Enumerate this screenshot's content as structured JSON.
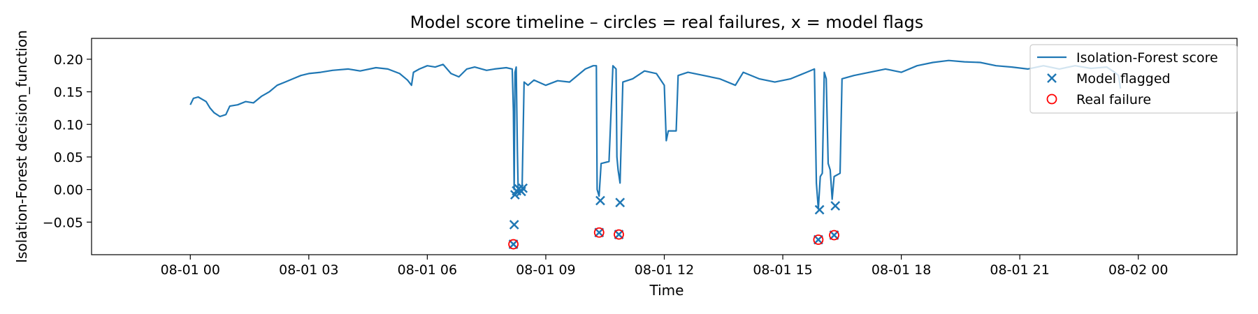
{
  "chart_data": {
    "type": "line",
    "title": "Model score timeline – circles = real failures, x = model flags",
    "xlabel": "Time",
    "ylabel": "Isolation-Forest decision_function",
    "x_range_hours": [
      -2.5,
      26.5
    ],
    "ylim": [
      -0.1,
      0.232
    ],
    "x_ticks": [
      {
        "value": 0,
        "label": "08-01 00"
      },
      {
        "value": 3,
        "label": "08-01 03"
      },
      {
        "value": 6,
        "label": "08-01 06"
      },
      {
        "value": 9,
        "label": "08-01 09"
      },
      {
        "value": 12,
        "label": "08-01 12"
      },
      {
        "value": 15,
        "label": "08-01 15"
      },
      {
        "value": 18,
        "label": "08-01 18"
      },
      {
        "value": 21,
        "label": "08-01 21"
      },
      {
        "value": 24,
        "label": "08-02 00"
      }
    ],
    "y_ticks": [
      {
        "value": 0.2,
        "label": "0.20"
      },
      {
        "value": 0.15,
        "label": "0.15"
      },
      {
        "value": 0.1,
        "label": "0.10"
      },
      {
        "value": 0.05,
        "label": "0.05"
      },
      {
        "value": 0.0,
        "label": "0.00"
      },
      {
        "value": -0.05,
        "label": "−0.05"
      }
    ],
    "grid": false,
    "legend_position": "top-right",
    "colors": {
      "score_line": "#1f77b4",
      "flag_marker": "#1f77b4",
      "failure_marker": "#ff0000"
    },
    "series": [
      {
        "name": "Isolation-Forest score",
        "kind": "line",
        "points": [
          [
            0.0,
            0.13
          ],
          [
            0.08,
            0.14
          ],
          [
            0.2,
            0.142
          ],
          [
            0.4,
            0.135
          ],
          [
            0.5,
            0.125
          ],
          [
            0.6,
            0.118
          ],
          [
            0.75,
            0.112
          ],
          [
            0.9,
            0.115
          ],
          [
            1.0,
            0.128
          ],
          [
            1.2,
            0.13
          ],
          [
            1.4,
            0.135
          ],
          [
            1.6,
            0.133
          ],
          [
            1.8,
            0.143
          ],
          [
            2.0,
            0.15
          ],
          [
            2.2,
            0.16
          ],
          [
            2.4,
            0.165
          ],
          [
            2.6,
            0.17
          ],
          [
            2.8,
            0.175
          ],
          [
            3.0,
            0.178
          ],
          [
            3.3,
            0.18
          ],
          [
            3.6,
            0.183
          ],
          [
            4.0,
            0.185
          ],
          [
            4.3,
            0.182
          ],
          [
            4.7,
            0.187
          ],
          [
            5.0,
            0.185
          ],
          [
            5.3,
            0.178
          ],
          [
            5.5,
            0.168
          ],
          [
            5.6,
            0.16
          ],
          [
            5.65,
            0.18
          ],
          [
            5.8,
            0.185
          ],
          [
            6.0,
            0.19
          ],
          [
            6.2,
            0.188
          ],
          [
            6.4,
            0.192
          ],
          [
            6.6,
            0.178
          ],
          [
            6.8,
            0.173
          ],
          [
            7.0,
            0.185
          ],
          [
            7.2,
            0.188
          ],
          [
            7.5,
            0.183
          ],
          [
            7.7,
            0.185
          ],
          [
            8.0,
            0.187
          ],
          [
            8.15,
            0.185
          ],
          [
            8.18,
            0.12
          ],
          [
            8.2,
            0.0
          ],
          [
            8.22,
            0.18
          ],
          [
            8.25,
            0.188
          ],
          [
            8.28,
            0.06
          ],
          [
            8.3,
            0.0
          ],
          [
            8.35,
            -0.005
          ],
          [
            8.4,
            0.0
          ],
          [
            8.45,
            0.165
          ],
          [
            8.55,
            0.16
          ],
          [
            8.7,
            0.168
          ],
          [
            9.0,
            0.16
          ],
          [
            9.3,
            0.167
          ],
          [
            9.6,
            0.165
          ],
          [
            10.0,
            0.185
          ],
          [
            10.2,
            0.19
          ],
          [
            10.28,
            0.19
          ],
          [
            10.3,
            0.0
          ],
          [
            10.35,
            -0.01
          ],
          [
            10.4,
            0.04
          ],
          [
            10.6,
            0.043
          ],
          [
            10.7,
            0.19
          ],
          [
            10.78,
            0.185
          ],
          [
            10.8,
            0.05
          ],
          [
            10.83,
            0.03
          ],
          [
            10.88,
            0.01
          ],
          [
            10.95,
            0.165
          ],
          [
            11.2,
            0.17
          ],
          [
            11.5,
            0.182
          ],
          [
            11.8,
            0.178
          ],
          [
            12.0,
            0.16
          ],
          [
            12.05,
            0.075
          ],
          [
            12.1,
            0.09
          ],
          [
            12.3,
            0.09
          ],
          [
            12.35,
            0.175
          ],
          [
            12.6,
            0.18
          ],
          [
            13.0,
            0.175
          ],
          [
            13.4,
            0.17
          ],
          [
            13.8,
            0.16
          ],
          [
            14.0,
            0.18
          ],
          [
            14.4,
            0.17
          ],
          [
            14.8,
            0.165
          ],
          [
            15.2,
            0.17
          ],
          [
            15.6,
            0.18
          ],
          [
            15.8,
            0.185
          ],
          [
            15.85,
            0.01
          ],
          [
            15.9,
            -0.03
          ],
          [
            15.95,
            0.02
          ],
          [
            16.0,
            0.025
          ],
          [
            16.05,
            0.18
          ],
          [
            16.1,
            0.17
          ],
          [
            16.15,
            0.04
          ],
          [
            16.2,
            0.03
          ],
          [
            16.25,
            -0.015
          ],
          [
            16.3,
            0.02
          ],
          [
            16.45,
            0.025
          ],
          [
            16.5,
            0.17
          ],
          [
            16.8,
            0.175
          ],
          [
            17.2,
            0.18
          ],
          [
            17.6,
            0.185
          ],
          [
            18.0,
            0.18
          ],
          [
            18.4,
            0.19
          ],
          [
            18.8,
            0.195
          ],
          [
            19.2,
            0.198
          ],
          [
            19.6,
            0.196
          ],
          [
            20.0,
            0.195
          ],
          [
            20.4,
            0.19
          ],
          [
            20.8,
            0.188
          ],
          [
            21.2,
            0.185
          ],
          [
            21.6,
            0.19
          ],
          [
            22.0,
            0.185
          ],
          [
            22.4,
            0.19
          ],
          [
            22.8,
            0.186
          ],
          [
            23.2,
            0.188
          ],
          [
            23.4,
            0.18
          ],
          [
            23.5,
            0.175
          ],
          [
            23.55,
            0.155
          ]
        ]
      },
      {
        "name": "Model flagged",
        "kind": "scatter",
        "marker": "x",
        "points": [
          [
            8.18,
            -0.084
          ],
          [
            8.2,
            -0.054
          ],
          [
            8.22,
            -0.008
          ],
          [
            8.26,
            -0.002
          ],
          [
            8.32,
            0.001
          ],
          [
            8.38,
            -0.003
          ],
          [
            8.42,
            0.002
          ],
          [
            10.35,
            -0.066
          ],
          [
            10.38,
            -0.017
          ],
          [
            10.85,
            -0.069
          ],
          [
            10.88,
            -0.02
          ],
          [
            15.9,
            -0.077
          ],
          [
            15.93,
            -0.031
          ],
          [
            16.3,
            -0.07
          ],
          [
            16.33,
            -0.025
          ]
        ]
      },
      {
        "name": "Real failure",
        "kind": "scatter",
        "marker": "circle",
        "points": [
          [
            8.18,
            -0.084
          ],
          [
            10.35,
            -0.066
          ],
          [
            10.85,
            -0.069
          ],
          [
            15.9,
            -0.077
          ],
          [
            16.3,
            -0.07
          ]
        ]
      }
    ]
  }
}
